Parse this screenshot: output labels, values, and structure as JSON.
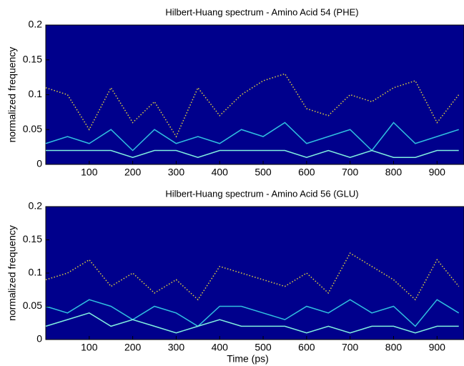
{
  "chart_data": [
    {
      "type": "spectrum",
      "title": "Hilbert-Huang spectrum - Amino Acid 54 (PHE)",
      "ylabel": "normalized frequency",
      "x": [
        0,
        50,
        100,
        150,
        200,
        250,
        300,
        350,
        400,
        450,
        500,
        550,
        600,
        650,
        700,
        750,
        800,
        850,
        900,
        950
      ],
      "series": [
        {
          "color": "#e0d040",
          "values": [
            0.11,
            0.1,
            0.05,
            0.11,
            0.06,
            0.09,
            0.04,
            0.11,
            0.07,
            0.1,
            0.12,
            0.13,
            0.08,
            0.07,
            0.1,
            0.09,
            0.11,
            0.12,
            0.06,
            0.1
          ]
        },
        {
          "color": "#30c0e0",
          "values": [
            0.03,
            0.04,
            0.03,
            0.05,
            0.02,
            0.05,
            0.03,
            0.04,
            0.03,
            0.05,
            0.04,
            0.06,
            0.03,
            0.04,
            0.05,
            0.02,
            0.06,
            0.03,
            0.04,
            0.05
          ]
        },
        {
          "color": "#80f0e0",
          "values": [
            0.02,
            0.02,
            0.02,
            0.02,
            0.01,
            0.02,
            0.02,
            0.01,
            0.02,
            0.02,
            0.02,
            0.02,
            0.01,
            0.02,
            0.01,
            0.02,
            0.01,
            0.01,
            0.02,
            0.02
          ]
        }
      ],
      "xlim": [
        0,
        962
      ],
      "xticks": [
        100,
        200,
        300,
        400,
        500,
        600,
        700,
        800,
        900
      ],
      "ylim": [
        0,
        0.2
      ],
      "yticks": [
        0,
        0.05,
        0.1,
        0.15,
        0.2
      ],
      "background": "#00008c"
    },
    {
      "type": "spectrum",
      "title": "Hilbert-Huang spectrum - Amino Acid 56 (GLU)",
      "ylabel": "normalized frequency",
      "xlabel": "Time (ps)",
      "x": [
        0,
        50,
        100,
        150,
        200,
        250,
        300,
        350,
        400,
        450,
        500,
        550,
        600,
        650,
        700,
        750,
        800,
        850,
        900,
        950
      ],
      "series": [
        {
          "color": "#e0d040",
          "values": [
            0.09,
            0.1,
            0.12,
            0.08,
            0.1,
            0.07,
            0.09,
            0.06,
            0.11,
            0.1,
            0.09,
            0.08,
            0.1,
            0.07,
            0.13,
            0.11,
            0.09,
            0.06,
            0.12,
            0.08
          ]
        },
        {
          "color": "#30c0e0",
          "values": [
            0.05,
            0.04,
            0.06,
            0.05,
            0.03,
            0.05,
            0.04,
            0.02,
            0.05,
            0.05,
            0.04,
            0.03,
            0.05,
            0.04,
            0.06,
            0.04,
            0.05,
            0.02,
            0.06,
            0.04
          ]
        },
        {
          "color": "#80f0e0",
          "values": [
            0.02,
            0.03,
            0.04,
            0.02,
            0.03,
            0.02,
            0.01,
            0.02,
            0.03,
            0.02,
            0.02,
            0.02,
            0.01,
            0.02,
            0.01,
            0.02,
            0.02,
            0.01,
            0.02,
            0.02
          ]
        }
      ],
      "xlim": [
        0,
        962
      ],
      "xticks": [
        100,
        200,
        300,
        400,
        500,
        600,
        700,
        800,
        900
      ],
      "ylim": [
        0,
        0.2
      ],
      "yticks": [
        0,
        0.05,
        0.1,
        0.15,
        0.2
      ],
      "background": "#00008c"
    }
  ]
}
